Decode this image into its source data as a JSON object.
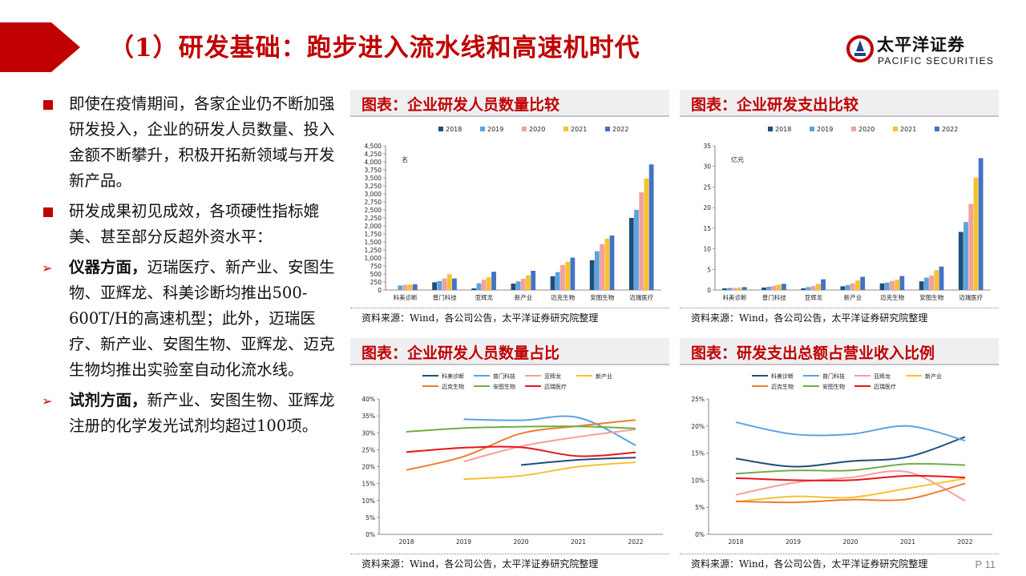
{
  "header": {
    "title": "（1）研发基础：跑步进入流水线和高速机时代",
    "logo_cn": "太平洋证券",
    "logo_en": "PACIFIC SECURITIES",
    "accent": "#c00000"
  },
  "bullets": [
    {
      "marker": "square",
      "bold": "",
      "text": "即使在疫情期间，各家企业仍不断加强研发投入，企业的研发人员数量、投入金额不断攀升，积极开拓新领域与开发新产品。"
    },
    {
      "marker": "square",
      "bold": "",
      "text": "研发成果初见成效，各项硬性指标媲美、甚至部分反超外资水平："
    },
    {
      "marker": "arrow",
      "bold": "仪器方面，",
      "text": "迈瑞医疗、新产业、安图生物、亚辉龙、科美诊断均推出500-600T/H的高速机型；此外，迈瑞医疗、新产业、安图生物、亚辉龙、迈克生物均推出实验室自动化流水线。"
    },
    {
      "marker": "arrow",
      "bold": "试剂方面，",
      "text": "新产业、安图生物、亚辉龙注册的化学发光试剂均超过100项。"
    }
  ],
  "page_number": "P 11",
  "chart_data": [
    {
      "type": "bar",
      "panel_title": "图表：企业研发人员数量比较",
      "unit": "名",
      "source": "资料来源：Wind，各公司公告，太平洋证券研究院整理",
      "categories": [
        "科美诊断",
        "普门科技",
        "亚辉龙",
        "新产业",
        "迈克生物",
        "安图生物",
        "迈瑞医疗"
      ],
      "series": [
        {
          "name": "2018",
          "color": "#1f4e79",
          "values": [
            null,
            240,
            50,
            200,
            430,
            930,
            2250
          ]
        },
        {
          "name": "2019",
          "color": "#5ba3e0",
          "values": [
            140,
            280,
            210,
            270,
            560,
            1210,
            2500
          ]
        },
        {
          "name": "2020",
          "color": "#f4a09c",
          "values": [
            160,
            360,
            320,
            350,
            780,
            1430,
            3050
          ]
        },
        {
          "name": "2021",
          "color": "#f5c231",
          "values": [
            170,
            490,
            400,
            460,
            880,
            1600,
            3480
          ]
        },
        {
          "name": "2022",
          "color": "#4472c4",
          "values": [
            180,
            360,
            570,
            600,
            1010,
            1700,
            3920
          ]
        }
      ],
      "ylim": [
        0,
        4500
      ],
      "yticks": [
        0,
        250,
        500,
        750,
        1000,
        1250,
        1500,
        1750,
        2000,
        2250,
        2500,
        2750,
        3000,
        3250,
        3500,
        3750,
        4000,
        4250,
        4500
      ],
      "ytick_labels": [
        "0",
        "250",
        "500",
        "750",
        "1,000",
        "1,250",
        "1,500",
        "1,750",
        "2,000",
        "2,250",
        "2,500",
        "2,750",
        "3,000",
        "3,250",
        "3,500",
        "3,750",
        "4,000",
        "4,250",
        "4,500"
      ]
    },
    {
      "type": "bar",
      "panel_title": "图表：企业研发支出比较",
      "unit": "亿元",
      "source": "资料来源：Wind，各公司公告，太平洋证券研究院整理",
      "categories": [
        "科美诊断",
        "普门科技",
        "亚辉龙",
        "新产业",
        "迈克生物",
        "安图生物",
        "迈瑞医疗"
      ],
      "series": [
        {
          "name": "2018",
          "color": "#1f4e79",
          "values": [
            0.4,
            0.6,
            0.4,
            0.9,
            1.6,
            2.1,
            14.1
          ]
        },
        {
          "name": "2019",
          "color": "#5ba3e0",
          "values": [
            0.5,
            0.8,
            0.7,
            1.2,
            1.8,
            3.0,
            16.5
          ]
        },
        {
          "name": "2020",
          "color": "#f4a09c",
          "values": [
            0.5,
            1.0,
            1.0,
            1.6,
            2.2,
            3.5,
            20.9
          ]
        },
        {
          "name": "2021",
          "color": "#f5c231",
          "values": [
            0.6,
            1.3,
            1.5,
            2.3,
            2.5,
            4.8,
            27.3
          ]
        },
        {
          "name": "2022",
          "color": "#4472c4",
          "values": [
            0.7,
            1.5,
            2.6,
            3.2,
            3.4,
            5.7,
            32.0
          ]
        }
      ],
      "ylim": [
        0,
        35
      ],
      "yticks": [
        0,
        5,
        10,
        15,
        20,
        25,
        30,
        35
      ],
      "ytick_labels": [
        "0",
        "5",
        "10",
        "15",
        "20",
        "25",
        "30",
        "35"
      ]
    },
    {
      "type": "line",
      "panel_title": "图表：企业研发人员数量占比",
      "source": "资料来源：Wind，各公司公告，太平洋证券研究院整理",
      "x": [
        "2018",
        "2019",
        "2020",
        "2021",
        "2022"
      ],
      "series": [
        {
          "name": "科美诊断",
          "color": "#1f4e79",
          "values": [
            null,
            null,
            20.5,
            22.0,
            22.7
          ]
        },
        {
          "name": "普门科技",
          "color": "#5ba3e0",
          "values": [
            null,
            34.0,
            33.7,
            34.5,
            26.3
          ]
        },
        {
          "name": "亚辉龙",
          "color": "#f4a09c",
          "values": [
            null,
            21.5,
            26.0,
            28.8,
            31.0
          ]
        },
        {
          "name": "新产业",
          "color": "#f5c231",
          "values": [
            null,
            16.3,
            17.3,
            20.0,
            21.3
          ]
        },
        {
          "name": "迈克生物",
          "color": "#ed7d31",
          "values": [
            19.0,
            23.0,
            29.8,
            32.0,
            33.8
          ]
        },
        {
          "name": "安图生物",
          "color": "#70ad47",
          "values": [
            30.3,
            31.4,
            31.8,
            31.9,
            31.3
          ]
        },
        {
          "name": "迈瑞医疗",
          "color": "#e8141c",
          "values": [
            24.3,
            25.6,
            25.7,
            23.1,
            24.2
          ]
        }
      ],
      "ylim": [
        0,
        40
      ],
      "yticks": [
        0,
        5,
        10,
        15,
        20,
        25,
        30,
        35,
        40
      ],
      "ytick_labels": [
        "0%",
        "5%",
        "10%",
        "15%",
        "20%",
        "25%",
        "30%",
        "35%",
        "40%"
      ]
    },
    {
      "type": "line",
      "panel_title": "图表：研发支出总额占营业收入比例",
      "source": "资料来源：Wind，各公司公告，太平洋证券研究院整理",
      "x": [
        "2018",
        "2019",
        "2020",
        "2021",
        "2022"
      ],
      "series": [
        {
          "name": "科美诊断",
          "color": "#1f4e79",
          "values": [
            14.0,
            12.5,
            13.5,
            14.3,
            18.0
          ]
        },
        {
          "name": "普门科技",
          "color": "#5ba3e0",
          "values": [
            20.7,
            18.5,
            18.5,
            20.0,
            17.3
          ]
        },
        {
          "name": "亚辉龙",
          "color": "#f4a09c",
          "values": [
            7.3,
            9.5,
            10.5,
            11.5,
            6.2
          ]
        },
        {
          "name": "新产业",
          "color": "#f5c231",
          "values": [
            6.0,
            7.0,
            6.8,
            8.5,
            10.3
          ]
        },
        {
          "name": "迈克生物",
          "color": "#ed7d31",
          "values": [
            6.1,
            5.9,
            6.4,
            6.5,
            9.4
          ]
        },
        {
          "name": "安图生物",
          "color": "#70ad47",
          "values": [
            11.2,
            11.8,
            11.8,
            13.0,
            12.8
          ]
        },
        {
          "name": "迈瑞医疗",
          "color": "#e8141c",
          "values": [
            10.4,
            10.0,
            10.0,
            10.8,
            10.5
          ]
        }
      ],
      "ylim": [
        0,
        25
      ],
      "yticks": [
        0,
        5,
        10,
        15,
        20,
        25
      ],
      "ytick_labels": [
        "0%",
        "5%",
        "10%",
        "15%",
        "20%",
        "25%"
      ]
    }
  ]
}
